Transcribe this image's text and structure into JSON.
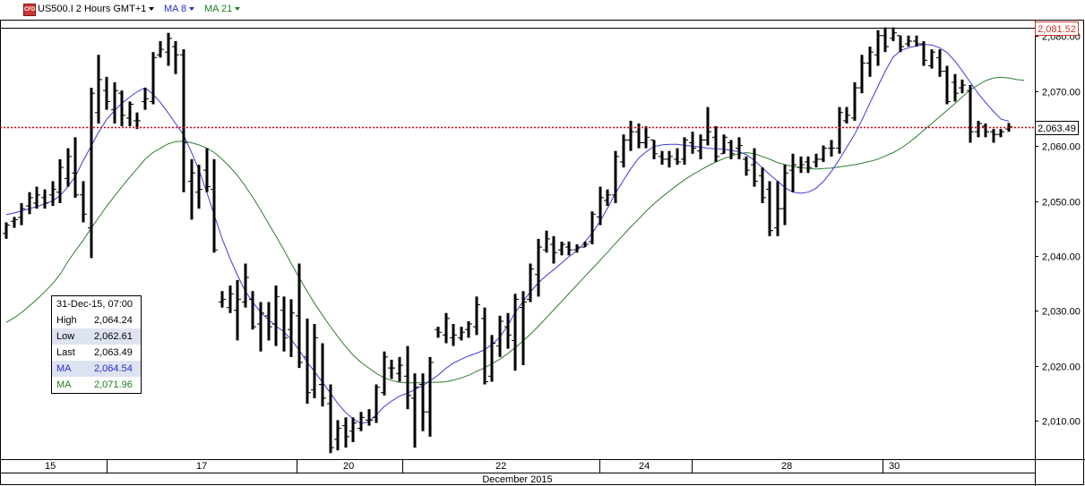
{
  "toolbar": {
    "symbol_icon": "cfd-instrument-icon",
    "symbol_label": "US500.I 2 Hours GMT+1",
    "ma8_label": "MA 8",
    "ma21_label": "MA 21"
  },
  "price_tags": {
    "high": "2,081.52",
    "last": "2,063.49"
  },
  "info_box": {
    "date": "31-Dec-15, 07:00",
    "rows": [
      {
        "label": "High",
        "value": "2,064.24",
        "color": "#000000"
      },
      {
        "label": "Low",
        "value": "2,062.61",
        "color": "#000000"
      },
      {
        "label": "Last",
        "value": "2,063.49",
        "color": "#000000"
      },
      {
        "label": "MA",
        "value": "2,064.54",
        "color": "#2a2ad0"
      },
      {
        "label": "MA",
        "value": "2,071.96",
        "color": "#1e7d1e"
      }
    ]
  },
  "x_labels": [
    "15",
    "17",
    "20",
    "22",
    "24",
    "28",
    "30"
  ],
  "month_label": "December 2015",
  "colors": {
    "bars": "#000000",
    "ma8": "#3b3bdc",
    "ma21": "#2e7d2e",
    "high_tag": "#c8362e",
    "last_line": "#cc0000"
  },
  "chart_data": {
    "type": "ohlc",
    "title": "US500.I 2 Hours GMT+1",
    "ylim": [
      2003,
      2083
    ],
    "y_ticks": [
      "2,010.00",
      "2,020.00",
      "2,030.00",
      "2,040.00",
      "2,050.00",
      "2,060.00",
      "2,070.00",
      "2,080.00"
    ],
    "y_tick_values": [
      2010,
      2020,
      2030,
      2040,
      2050,
      2060,
      2070,
      2080
    ],
    "reference_lines": [
      {
        "name": "high",
        "value": 2081.52
      },
      {
        "name": "last",
        "value": 2063.49
      }
    ],
    "bars": [
      [
        2046.1,
        2043.1,
        2044.1,
        2045.6
      ],
      [
        2047.1,
        2045.1,
        2046.3,
        2046.6
      ],
      [
        2049.6,
        2045.6,
        2047.0,
        2048.6
      ],
      [
        2051.6,
        2047.6,
        2049.1,
        2050.6
      ],
      [
        2052.6,
        2048.6,
        2049.6,
        2051.1
      ],
      [
        2052.1,
        2048.6,
        2050.6,
        2049.6
      ],
      [
        2053.6,
        2049.1,
        2051.1,
        2052.1
      ],
      [
        2057.6,
        2049.6,
        2051.6,
        2056.1
      ],
      [
        2059.6,
        2052.6,
        2054.1,
        2058.1
      ],
      [
        2061.6,
        2050.6,
        2055.1,
        2051.1
      ],
      [
        2053.6,
        2046.1,
        2051.1,
        2047.6
      ],
      [
        2070.6,
        2039.6,
        2045.1,
        2069.6
      ],
      [
        2076.6,
        2064.1,
        2066.1,
        2072.1
      ],
      [
        2072.6,
        2066.6,
        2070.1,
        2068.1
      ],
      [
        2071.6,
        2064.1,
        2066.6,
        2070.1
      ],
      [
        2070.1,
        2063.6,
        2069.6,
        2065.6
      ],
      [
        2068.1,
        2063.6,
        2065.1,
        2067.6
      ],
      [
        2066.1,
        2063.1,
        2064.6,
        2064.6
      ],
      [
        2070.6,
        2066.6,
        2068.1,
        2068.6
      ],
      [
        2077.1,
        2067.6,
        2068.1,
        2076.1
      ],
      [
        2079.1,
        2076.1,
        2076.6,
        2077.6
      ],
      [
        2080.6,
        2074.6,
        2077.1,
        2079.6
      ],
      [
        2079.1,
        2073.1,
        2078.1,
        2076.6
      ],
      [
        2077.6,
        2051.6,
        2076.6,
        2060.6
      ],
      [
        2057.6,
        2046.6,
        2053.6,
        2055.1
      ],
      [
        2056.6,
        2048.6,
        2051.6,
        2052.1
      ],
      [
        2059.6,
        2051.6,
        2055.6,
        2052.6
      ],
      [
        2057.6,
        2040.6,
        2052.1,
        2041.1
      ],
      [
        2033.6,
        2030.6,
        2031.6,
        2032.1
      ],
      [
        2034.6,
        2029.6,
        2030.6,
        2033.1
      ],
      [
        2035.6,
        2024.6,
        2030.1,
        2032.1
      ],
      [
        2038.6,
        2030.6,
        2031.6,
        2036.1
      ],
      [
        2033.6,
        2026.6,
        2032.1,
        2027.1
      ],
      [
        2031.6,
        2022.6,
        2027.6,
        2029.6
      ],
      [
        2031.6,
        2024.6,
        2029.1,
        2027.1
      ],
      [
        2034.6,
        2023.6,
        2027.6,
        2032.6
      ],
      [
        2032.6,
        2022.6,
        2030.1,
        2025.1
      ],
      [
        2032.1,
        2021.6,
        2026.6,
        2029.6
      ],
      [
        2038.6,
        2019.6,
        2029.1,
        2020.6
      ],
      [
        2028.6,
        2013.1,
        2021.6,
        2015.1
      ],
      [
        2027.6,
        2014.1,
        2015.6,
        2025.1
      ],
      [
        2024.1,
        2012.6,
        2016.6,
        2014.1
      ],
      [
        2016.6,
        2004.1,
        2013.1,
        2005.1
      ],
      [
        2010.1,
        2004.6,
        2006.6,
        2008.6
      ],
      [
        2010.6,
        2005.1,
        2009.1,
        2007.1
      ],
      [
        2010.6,
        2006.1,
        2008.1,
        2009.6
      ],
      [
        2011.6,
        2008.1,
        2008.6,
        2010.6
      ],
      [
        2012.1,
        2009.1,
        2010.1,
        2010.1
      ],
      [
        2016.6,
        2009.6,
        2010.6,
        2016.1
      ],
      [
        2022.6,
        2014.6,
        2015.1,
        2021.6
      ],
      [
        2021.1,
        2017.6,
        2019.6,
        2019.6
      ],
      [
        2021.6,
        2017.1,
        2018.6,
        2020.1
      ],
      [
        2023.6,
        2012.1,
        2018.1,
        2014.6
      ],
      [
        2018.6,
        2005.1,
        2014.1,
        2016.1
      ],
      [
        2018.6,
        2008.1,
        2016.6,
        2011.6
      ],
      [
        2021.6,
        2007.1,
        2011.6,
        2020.6
      ],
      [
        2027.1,
        2025.1,
        2026.6,
        2026.1
      ],
      [
        2029.6,
        2024.1,
        2025.6,
        2028.6
      ],
      [
        2027.6,
        2023.6,
        2025.1,
        2025.6
      ],
      [
        2027.1,
        2024.6,
        2025.1,
        2026.1
      ],
      [
        2028.1,
        2025.1,
        2026.6,
        2027.6
      ],
      [
        2032.6,
        2025.6,
        2027.1,
        2031.1
      ],
      [
        2030.6,
        2016.6,
        2028.6,
        2017.1
      ],
      [
        2025.6,
        2017.1,
        2018.1,
        2024.1
      ],
      [
        2029.1,
        2021.6,
        2023.6,
        2028.1
      ],
      [
        2029.6,
        2023.1,
        2027.1,
        2025.6
      ],
      [
        2033.1,
        2019.1,
        2024.6,
        2032.1
      ],
      [
        2033.6,
        2020.1,
        2030.6,
        2031.6
      ],
      [
        2038.6,
        2031.6,
        2032.1,
        2037.6
      ],
      [
        2043.1,
        2032.6,
        2036.6,
        2041.6
      ],
      [
        2044.6,
        2040.6,
        2041.1,
        2043.1
      ],
      [
        2043.6,
        2038.6,
        2042.1,
        2040.6
      ],
      [
        2042.6,
        2040.1,
        2041.1,
        2042.1
      ],
      [
        2042.6,
        2040.1,
        2041.6,
        2041.1
      ],
      [
        2042.1,
        2040.6,
        2041.1,
        2041.6
      ],
      [
        2042.6,
        2041.6,
        2041.6,
        2042.1
      ],
      [
        2048.1,
        2042.1,
        2042.6,
        2047.6
      ],
      [
        2052.6,
        2045.6,
        2047.1,
        2050.6
      ],
      [
        2052.1,
        2049.1,
        2050.1,
        2051.1
      ],
      [
        2059.1,
        2049.6,
        2051.1,
        2058.1
      ],
      [
        2062.1,
        2056.1,
        2057.1,
        2061.1
      ],
      [
        2064.6,
        2059.1,
        2061.1,
        2062.6
      ],
      [
        2064.1,
        2059.6,
        2062.6,
        2060.6
      ],
      [
        2063.6,
        2059.6,
        2060.6,
        2061.6
      ],
      [
        2061.1,
        2057.6,
        2061.1,
        2058.6
      ],
      [
        2059.1,
        2056.6,
        2058.1,
        2057.6
      ],
      [
        2059.1,
        2056.1,
        2057.6,
        2058.1
      ],
      [
        2059.6,
        2056.6,
        2057.6,
        2057.1
      ],
      [
        2061.6,
        2056.6,
        2057.6,
        2061.1
      ],
      [
        2062.6,
        2058.6,
        2060.6,
        2059.6
      ],
      [
        2062.1,
        2057.6,
        2059.1,
        2061.1
      ],
      [
        2067.1,
        2060.1,
        2061.1,
        2062.6
      ],
      [
        2063.6,
        2057.1,
        2061.6,
        2058.1
      ],
      [
        2062.1,
        2058.6,
        2058.6,
        2061.6
      ],
      [
        2061.1,
        2057.6,
        2060.6,
        2058.6
      ],
      [
        2061.6,
        2057.6,
        2059.6,
        2060.1
      ],
      [
        2058.1,
        2054.6,
        2057.6,
        2055.6
      ],
      [
        2059.6,
        2052.6,
        2056.6,
        2053.6
      ],
      [
        2056.1,
        2049.6,
        2054.6,
        2050.6
      ],
      [
        2053.6,
        2043.6,
        2052.1,
        2044.6
      ],
      [
        2053.6,
        2043.6,
        2045.1,
        2048.6
      ],
      [
        2056.6,
        2045.6,
        2048.6,
        2055.1
      ],
      [
        2058.6,
        2051.6,
        2055.6,
        2056.6
      ],
      [
        2058.1,
        2055.1,
        2056.1,
        2056.6
      ],
      [
        2058.1,
        2055.1,
        2057.1,
        2056.1
      ],
      [
        2058.6,
        2056.1,
        2057.1,
        2057.6
      ],
      [
        2060.1,
        2057.1,
        2057.6,
        2059.6
      ],
      [
        2061.1,
        2058.1,
        2059.6,
        2059.6
      ],
      [
        2067.1,
        2058.6,
        2059.6,
        2066.1
      ],
      [
        2067.1,
        2064.1,
        2064.6,
        2065.6
      ],
      [
        2071.6,
        2064.6,
        2065.1,
        2070.6
      ],
      [
        2076.6,
        2069.6,
        2070.6,
        2075.1
      ],
      [
        2078.1,
        2072.6,
        2075.1,
        2077.1
      ],
      [
        2081.1,
        2074.6,
        2076.6,
        2080.1
      ],
      [
        2081.6,
        2077.1,
        2080.1,
        2078.1
      ],
      [
        2081.6,
        2079.1,
        2079.6,
        2080.6
      ],
      [
        2080.1,
        2077.1,
        2080.1,
        2078.1
      ],
      [
        2080.1,
        2078.1,
        2078.6,
        2079.1
      ],
      [
        2080.1,
        2078.1,
        2079.1,
        2078.6
      ],
      [
        2079.1,
        2074.6,
        2078.6,
        2075.6
      ],
      [
        2077.6,
        2074.1,
        2074.6,
        2077.1
      ],
      [
        2077.6,
        2072.6,
        2076.1,
        2073.6
      ],
      [
        2074.6,
        2067.6,
        2073.6,
        2068.1
      ],
      [
        2073.1,
        2068.1,
        2071.6,
        2069.6
      ],
      [
        2072.1,
        2069.6,
        2070.6,
        2071.1
      ],
      [
        2071.1,
        2060.6,
        2070.1,
        2062.6
      ],
      [
        2064.6,
        2061.6,
        2062.6,
        2064.1
      ],
      [
        2064.1,
        2061.6,
        2063.6,
        2062.6
      ],
      [
        2063.1,
        2060.6,
        2062.6,
        2062.1
      ],
      [
        2063.1,
        2061.6,
        2062.1,
        2062.6
      ],
      [
        2064.2,
        2062.6,
        2063.1,
        2063.5
      ]
    ],
    "ma8": [
      2047.5,
      2047.8,
      2048.2,
      2048.6,
      2049.0,
      2049.5,
      2050.0,
      2051.0,
      2052.6,
      2054.6,
      2057.4,
      2060.0,
      2062.6,
      2064.8,
      2066.4,
      2067.8,
      2068.9,
      2069.9,
      2070.6,
      2069.5,
      2067.9,
      2066.0,
      2064.0,
      2062.0,
      2058.9,
      2055.6,
      2051.6,
      2047.3,
      2043.1,
      2039.6,
      2036.4,
      2033.6,
      2031.5,
      2029.7,
      2028.4,
      2027.2,
      2026.2,
      2024.7,
      2022.8,
      2020.7,
      2018.9,
      2017.0,
      2015.1,
      2013.1,
      2011.5,
      2010.3,
      2009.5,
      2009.8,
      2011.1,
      2012.6,
      2013.6,
      2014.5,
      2015.0,
      2015.7,
      2016.4,
      2017.3,
      2018.3,
      2019.5,
      2020.5,
      2021.2,
      2021.8,
      2022.3,
      2022.9,
      2023.9,
      2025.2,
      2027.3,
      2029.7,
      2031.7,
      2033.5,
      2035.1,
      2036.4,
      2037.5,
      2038.7,
      2039.9,
      2040.9,
      2042.5,
      2044.2,
      2046.3,
      2048.8,
      2051.4,
      2053.7,
      2055.9,
      2057.8,
      2059.0,
      2059.9,
      2060.2,
      2060.3,
      2060.3,
      2060.1,
      2060.0,
      2059.8,
      2059.6,
      2059.5,
      2059.4,
      2059.2,
      2059.0,
      2058.4,
      2057.4,
      2056.1,
      2054.8,
      2053.6,
      2052.4,
      2051.6,
      2051.4,
      2051.6,
      2052.3,
      2053.6,
      2055.4,
      2057.5,
      2059.8,
      2062.1,
      2064.9,
      2067.9,
      2070.8,
      2073.7,
      2076.2,
      2077.4,
      2077.9,
      2078.2,
      2078.5,
      2078.4,
      2077.9,
      2077.0,
      2075.5,
      2073.6,
      2071.6,
      2069.6,
      2067.9,
      2066.3,
      2064.9,
      2064.5
    ],
    "ma21": [
      2027.9,
      2028.7,
      2029.7,
      2030.9,
      2032.1,
      2033.5,
      2034.9,
      2036.7,
      2039.0,
      2041.0,
      2042.9,
      2045.0,
      2047.0,
      2049.0,
      2050.8,
      2052.6,
      2054.3,
      2055.9,
      2057.6,
      2058.8,
      2059.6,
      2060.4,
      2060.8,
      2060.9,
      2060.6,
      2060.2,
      2059.6,
      2058.8,
      2057.6,
      2056.2,
      2054.6,
      2052.7,
      2050.6,
      2048.3,
      2045.9,
      2043.5,
      2041.1,
      2038.5,
      2036.0,
      2033.6,
      2031.3,
      2029.2,
      2027.2,
      2025.3,
      2023.5,
      2021.9,
      2020.6,
      2019.6,
      2018.6,
      2017.8,
      2017.3,
      2017.0,
      2016.9,
      2016.9,
      2016.9,
      2017.0,
      2017.0,
      2017.1,
      2017.4,
      2017.8,
      2018.3,
      2019.0,
      2019.6,
      2020.4,
      2021.2,
      2022.2,
      2023.3,
      2024.5,
      2025.8,
      2027.2,
      2028.7,
      2030.2,
      2031.7,
      2033.2,
      2034.7,
      2036.2,
      2037.7,
      2039.2,
      2040.7,
      2042.3,
      2043.8,
      2045.3,
      2046.7,
      2048.2,
      2049.5,
      2050.7,
      2051.8,
      2052.9,
      2053.9,
      2054.8,
      2055.6,
      2056.4,
      2057.1,
      2057.7,
      2058.2,
      2058.6,
      2058.8,
      2058.6,
      2058.1,
      2057.6,
      2057.0,
      2056.6,
      2056.3,
      2056.1,
      2055.9,
      2055.8,
      2055.9,
      2056.0,
      2056.2,
      2056.4,
      2056.6,
      2056.9,
      2057.2,
      2057.6,
      2058.2,
      2058.8,
      2059.6,
      2060.6,
      2061.7,
      2062.9,
      2064.1,
      2065.3,
      2066.5,
      2067.7,
      2069.0,
      2070.2,
      2071.1,
      2071.9,
      2072.4,
      2072.5,
      2072.4,
      2072.1,
      2071.96
    ]
  }
}
